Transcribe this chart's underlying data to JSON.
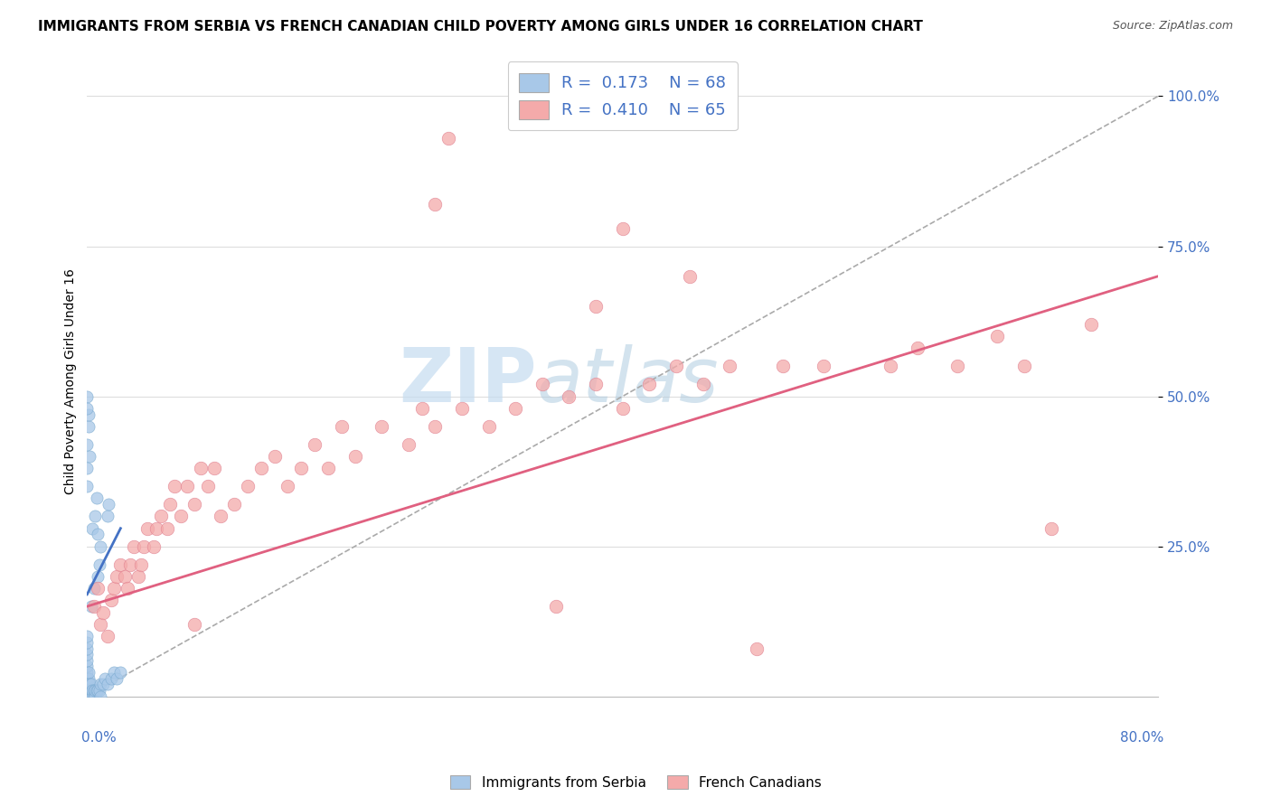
{
  "title": "IMMIGRANTS FROM SERBIA VS FRENCH CANADIAN CHILD POVERTY AMONG GIRLS UNDER 16 CORRELATION CHART",
  "source": "Source: ZipAtlas.com",
  "ylabel": "Child Poverty Among Girls Under 16",
  "watermark_zip": "ZIP",
  "watermark_atlas": "atlas",
  "serbia_color": "#A8C8E8",
  "serbia_edge_color": "#7AAAD0",
  "serbia_line_color": "#4472C4",
  "french_color": "#F4AAAA",
  "french_edge_color": "#E08090",
  "french_line_color": "#E06080",
  "ref_line_color": "#AAAAAA",
  "grid_color": "#DDDDDD",
  "background_color": "#FFFFFF",
  "tick_color": "#4472C4",
  "title_fontsize": 11,
  "axis_label_fontsize": 10,
  "tick_fontsize": 11,
  "serbia_x": [
    0.0,
    0.0,
    0.0,
    0.0,
    0.0,
    0.0,
    0.0,
    0.0,
    0.0,
    0.0,
    0.0,
    0.0,
    0.0,
    0.0,
    0.0,
    0.0,
    0.0,
    0.0,
    0.0,
    0.0,
    0.001,
    0.001,
    0.001,
    0.001,
    0.001,
    0.002,
    0.002,
    0.002,
    0.003,
    0.003,
    0.003,
    0.004,
    0.004,
    0.005,
    0.005,
    0.006,
    0.006,
    0.007,
    0.008,
    0.009,
    0.01,
    0.01,
    0.012,
    0.013,
    0.015,
    0.018,
    0.02,
    0.022,
    0.025,
    0.015,
    0.016,
    0.008,
    0.009,
    0.01,
    0.005,
    0.003,
    0.001,
    0.001,
    0.002,
    0.0,
    0.0,
    0.0,
    0.0,
    0.0,
    0.004,
    0.006,
    0.007,
    0.008
  ],
  "serbia_y": [
    0.0,
    0.0,
    0.0,
    0.0,
    0.0,
    0.0,
    0.0,
    0.0,
    0.01,
    0.01,
    0.02,
    0.02,
    0.03,
    0.04,
    0.05,
    0.06,
    0.07,
    0.08,
    0.09,
    0.1,
    0.0,
    0.01,
    0.02,
    0.03,
    0.04,
    0.0,
    0.01,
    0.02,
    0.0,
    0.01,
    0.02,
    0.0,
    0.01,
    0.0,
    0.01,
    0.0,
    0.01,
    0.01,
    0.01,
    0.01,
    0.0,
    0.02,
    0.02,
    0.03,
    0.02,
    0.03,
    0.04,
    0.03,
    0.04,
    0.3,
    0.32,
    0.2,
    0.22,
    0.25,
    0.18,
    0.15,
    0.45,
    0.47,
    0.4,
    0.5,
    0.48,
    0.38,
    0.35,
    0.42,
    0.28,
    0.3,
    0.33,
    0.27
  ],
  "french_x": [
    0.005,
    0.008,
    0.01,
    0.012,
    0.015,
    0.018,
    0.02,
    0.022,
    0.025,
    0.028,
    0.03,
    0.032,
    0.035,
    0.038,
    0.04,
    0.042,
    0.045,
    0.05,
    0.052,
    0.055,
    0.06,
    0.062,
    0.065,
    0.07,
    0.075,
    0.08,
    0.085,
    0.09,
    0.095,
    0.1,
    0.11,
    0.12,
    0.13,
    0.14,
    0.15,
    0.16,
    0.17,
    0.18,
    0.19,
    0.2,
    0.22,
    0.24,
    0.25,
    0.26,
    0.28,
    0.3,
    0.32,
    0.34,
    0.36,
    0.38,
    0.4,
    0.42,
    0.44,
    0.46,
    0.48,
    0.5,
    0.52,
    0.55,
    0.6,
    0.62,
    0.65,
    0.68,
    0.7,
    0.72,
    0.75
  ],
  "french_y": [
    0.15,
    0.18,
    0.12,
    0.14,
    0.1,
    0.16,
    0.18,
    0.2,
    0.22,
    0.2,
    0.18,
    0.22,
    0.25,
    0.2,
    0.22,
    0.25,
    0.28,
    0.25,
    0.28,
    0.3,
    0.28,
    0.32,
    0.35,
    0.3,
    0.35,
    0.32,
    0.38,
    0.35,
    0.38,
    0.3,
    0.32,
    0.35,
    0.38,
    0.4,
    0.35,
    0.38,
    0.42,
    0.38,
    0.45,
    0.4,
    0.45,
    0.42,
    0.48,
    0.45,
    0.48,
    0.45,
    0.48,
    0.52,
    0.5,
    0.52,
    0.48,
    0.52,
    0.55,
    0.52,
    0.55,
    0.08,
    0.55,
    0.55,
    0.55,
    0.58,
    0.55,
    0.6,
    0.55,
    0.28,
    0.62
  ],
  "french_extra_x": [
    0.26,
    0.27,
    0.4,
    0.45,
    0.38,
    0.35,
    0.08
  ],
  "french_extra_y": [
    0.82,
    0.93,
    0.78,
    0.7,
    0.65,
    0.15,
    0.12
  ],
  "serbia_trend_x0": 0.0,
  "serbia_trend_x1": 0.025,
  "serbia_trend_y0": 0.17,
  "serbia_trend_y1": 0.28,
  "french_trend_x0": 0.0,
  "french_trend_x1": 0.8,
  "french_trend_y0": 0.15,
  "french_trend_y1": 0.7,
  "ref_line_x0": 0.0,
  "ref_line_x1": 0.8,
  "ref_line_y0": 0.0,
  "ref_line_y1": 1.0,
  "xlim": [
    0.0,
    0.8
  ],
  "ylim": [
    0.0,
    1.05
  ],
  "yticks": [
    0.25,
    0.5,
    0.75,
    1.0
  ],
  "ytick_labels": [
    "25.0%",
    "50.0%",
    "75.0%",
    "100.0%"
  ]
}
